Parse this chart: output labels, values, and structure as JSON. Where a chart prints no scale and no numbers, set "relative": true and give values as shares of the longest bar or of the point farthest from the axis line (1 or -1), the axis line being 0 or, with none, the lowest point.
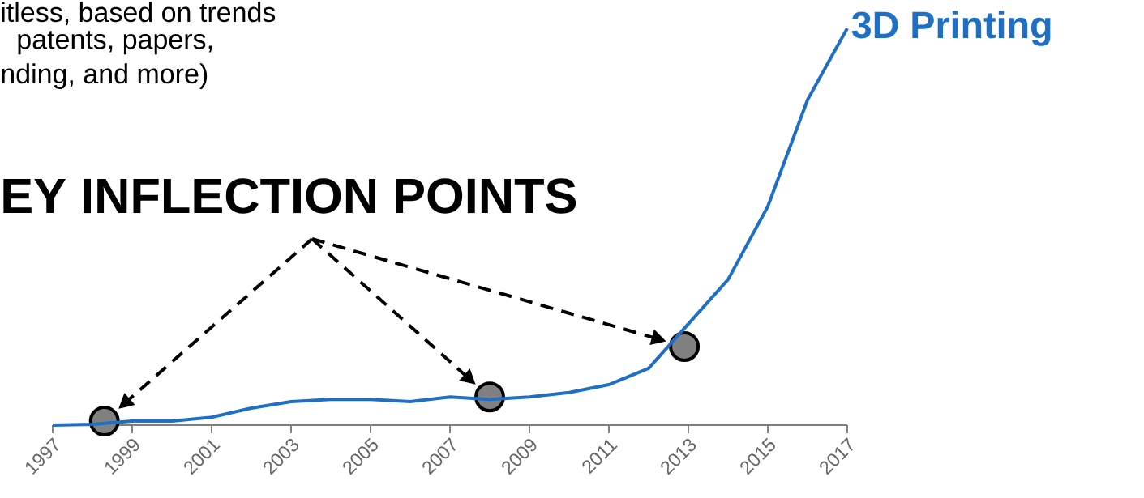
{
  "chart_data": {
    "type": "line",
    "relative": true,
    "xlim": [
      1997,
      2017
    ],
    "xticks": [
      1997,
      1999,
      2001,
      2003,
      2005,
      2007,
      2009,
      2011,
      2013,
      2015,
      2017
    ],
    "tick_labels": "x",
    "annotations": [
      "itless, based on trends",
      "patents, papers,",
      "nding, and more)",
      "EY INFLECTION POINTS"
    ],
    "series": [
      {
        "name": "3D Printing",
        "color": "#1f6fc4",
        "x": [
          1997,
          1998,
          1999,
          2000,
          2001,
          2002,
          2003,
          2004,
          2005,
          2006,
          2007,
          2008,
          2009,
          2010,
          2011,
          2012,
          2013,
          2014,
          2015,
          2016,
          2017
        ],
        "values": [
          0,
          0.002,
          0.01,
          0.01,
          0.02,
          0.043,
          0.059,
          0.065,
          0.065,
          0.059,
          0.071,
          0.065,
          0.071,
          0.082,
          0.102,
          0.143,
          null,
          0.367,
          0.551,
          0.82,
          1.0
        ]
      },
      {
        "type": "scatter",
        "marker": "circle",
        "color": "#808080",
        "x": [
          1998.3,
          2008,
          2012.9
        ],
        "values": [
          0.01,
          0.071,
          0.198
        ]
      }
    ]
  }
}
